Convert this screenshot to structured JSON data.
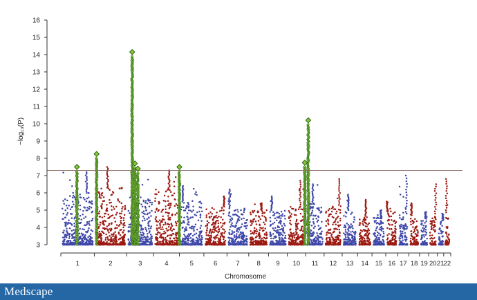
{
  "chart_data": {
    "type": "scatter",
    "subtype": "manhattan",
    "xlabel": "Chromosome",
    "ylabel": "−log₁₀(P)",
    "ylim": [
      3,
      16
    ],
    "yticks": [
      3,
      4,
      5,
      6,
      7,
      8,
      9,
      10,
      11,
      12,
      13,
      14,
      15,
      16
    ],
    "significance_threshold": 7.3,
    "grid": false,
    "legend": "none",
    "colors": {
      "odd_chromosome": "#3f47a8",
      "even_chromosome": "#9c1a12",
      "highlight": "#8cc63f",
      "highlight_outline": "#2e6d12",
      "threshold_line": "#8c6e68"
    },
    "chromosomes": [
      {
        "label": "1",
        "max": 7.2,
        "base": 6.0
      },
      {
        "label": "2",
        "max": 7.5,
        "base": 6.3
      },
      {
        "label": "3",
        "max": 7.4,
        "base": 6.0
      },
      {
        "label": "4",
        "max": 7.3,
        "base": 6.2
      },
      {
        "label": "5",
        "max": 6.4,
        "base": 5.5
      },
      {
        "label": "6",
        "max": 5.8,
        "base": 5.2
      },
      {
        "label": "7",
        "max": 6.2,
        "base": 5.1
      },
      {
        "label": "8",
        "max": 5.4,
        "base": 5.0
      },
      {
        "label": "9",
        "max": 5.8,
        "base": 5.0
      },
      {
        "label": "10",
        "max": 6.7,
        "base": 5.2
      },
      {
        "label": "11",
        "max": 6.5,
        "base": 5.4
      },
      {
        "label": "12",
        "max": 6.8,
        "base": 5.3
      },
      {
        "label": "13",
        "max": 5.9,
        "base": 5.0
      },
      {
        "label": "14",
        "max": 5.6,
        "base": 4.8
      },
      {
        "label": "15",
        "max": 5.0,
        "base": 4.6
      },
      {
        "label": "16",
        "max": 5.5,
        "base": 4.9
      },
      {
        "label": "17",
        "max": 7.0,
        "base": 4.9
      },
      {
        "label": "18",
        "max": 5.4,
        "base": 4.7
      },
      {
        "label": "19",
        "max": 4.9,
        "base": 4.5
      },
      {
        "label": "20",
        "max": 6.5,
        "base": 4.8
      },
      {
        "label": "21",
        "max": 4.8,
        "base": 4.4
      },
      {
        "label": "22",
        "max": 6.8,
        "base": 5.0
      }
    ],
    "peaks": [
      {
        "chromosome": "1",
        "position": 0.48,
        "lead_p": 7.5
      },
      {
        "chromosome": "2",
        "position": 0.07,
        "lead_p": 8.25
      },
      {
        "chromosome": "3",
        "position": 0.2,
        "lead_p": 14.15
      },
      {
        "chromosome": "3",
        "position": 0.3,
        "lead_p": 7.7
      },
      {
        "chromosome": "3",
        "position": 0.41,
        "lead_p": 7.4
      },
      {
        "chromosome": "5",
        "position": 0.0,
        "lead_p": 7.5
      },
      {
        "chromosome": "10",
        "position": 0.95,
        "lead_p": 7.75
      },
      {
        "chromosome": "11",
        "position": 0.14,
        "lead_p": 10.2
      }
    ]
  },
  "footer": {
    "brand": "Medscape"
  }
}
